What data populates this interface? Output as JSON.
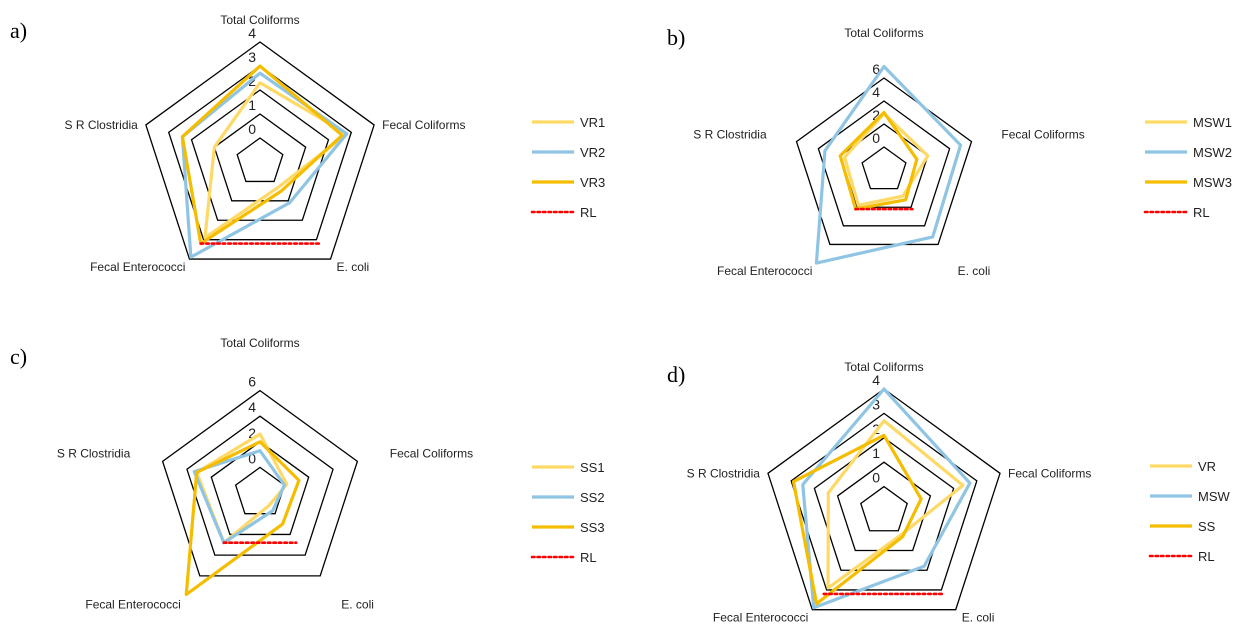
{
  "chart_data": [
    {
      "type": "radar",
      "panel": "a)",
      "axes": [
        "Total Coliforms",
        "Fecal Coliforms",
        "E. coli",
        "Fecal Enterococci",
        "S R Clostridia"
      ],
      "ticks": [
        "0",
        "1",
        "2",
        "3",
        "4"
      ],
      "rmin": -1,
      "rmax": 4,
      "series": [
        {
          "name": "VR1",
          "color": "#ffd966",
          "style": "solid",
          "values": [
            2.3,
            2.8,
            0.3,
            2.9,
            1.0
          ]
        },
        {
          "name": "VR2",
          "color": "#8fc4e3",
          "style": "solid",
          "values": [
            2.7,
            2.8,
            1.1,
            3.9,
            2.4
          ]
        },
        {
          "name": "VR3",
          "color": "#f5bd00",
          "style": "solid",
          "values": [
            3.0,
            2.6,
            0.5,
            3.2,
            2.4
          ]
        },
        {
          "name": "RL",
          "color": "#ff0000",
          "style": "dotted",
          "segment": [
            3.2,
            3.2
          ]
        }
      ]
    },
    {
      "type": "radar",
      "panel": "b)",
      "axes": [
        "Total Coliforms",
        "Fecal Coliforms",
        "E. coli",
        "Fecal Enterococci",
        "S R Clostridia"
      ],
      "ticks": [
        "0",
        "2",
        "4",
        "6"
      ],
      "rmin": -2,
      "rmax": 8,
      "series": [
        {
          "name": "MSW1",
          "color": "#ffd966",
          "style": "solid",
          "values": [
            2.9,
            2.0,
            0.8,
            1.8,
            1.6
          ]
        },
        {
          "name": "MSW2",
          "color": "#8fc4e3",
          "style": "solid",
          "values": [
            7.0,
            5.0,
            5.2,
            8.0,
            3.4
          ]
        },
        {
          "name": "MSW3",
          "color": "#f5bd00",
          "style": "solid",
          "values": [
            3.0,
            1.0,
            1.2,
            2.2,
            2.0
          ]
        },
        {
          "name": "RL",
          "color": "#ff0000",
          "style": "dotted",
          "segment": [
            2.2,
            2.2
          ]
        }
      ]
    },
    {
      "type": "radar",
      "panel": "c)",
      "axes": [
        "Total Coliforms",
        "Fecal Coliforms",
        "E. coli",
        "Fecal Enterococci",
        "S R Clostridia"
      ],
      "ticks": [
        "0",
        "2",
        "4",
        "6"
      ],
      "rmin": -2,
      "rmax": 8,
      "series": [
        {
          "name": "SS1",
          "color": "#ffd966",
          "style": "solid",
          "values": [
            2.6,
            0.2,
            -0.8,
            2.8,
            3.2
          ]
        },
        {
          "name": "SS2",
          "color": "#8fc4e3",
          "style": "solid",
          "values": [
            1.3,
            0.0,
            -0.3,
            2.8,
            3.4
          ]
        },
        {
          "name": "SS3",
          "color": "#f5bd00",
          "style": "solid",
          "values": [
            2.0,
            1.2,
            1.0,
            7.8,
            3.2
          ]
        },
        {
          "name": "RL",
          "color": "#ff0000",
          "style": "dotted",
          "segment": [
            2.8,
            2.8
          ]
        }
      ]
    },
    {
      "type": "radar",
      "panel": "d)",
      "axes": [
        "Total Coliforms",
        "Fecal Coliforms",
        "E. coli",
        "Fecal Enterococci",
        "S R Clostridia"
      ],
      "ticks": [
        "0",
        "1",
        "2",
        "3",
        "4"
      ],
      "rmin": -1,
      "rmax": 4,
      "series": [
        {
          "name": "VR",
          "color": "#ffd966",
          "style": "solid",
          "values": [
            2.7,
            2.4,
            0.2,
            2.9,
            1.4
          ]
        },
        {
          "name": "MSW",
          "color": "#8fc4e3",
          "style": "solid",
          "values": [
            4.0,
            2.7,
            1.8,
            3.9,
            2.5
          ]
        },
        {
          "name": "SS",
          "color": "#f5bd00",
          "style": "solid",
          "values": [
            2.1,
            0.6,
            0.3,
            3.7,
            2.9
          ]
        },
        {
          "name": "RL",
          "color": "#ff0000",
          "style": "dotted",
          "segment": [
            3.2,
            3.2
          ]
        }
      ]
    }
  ]
}
